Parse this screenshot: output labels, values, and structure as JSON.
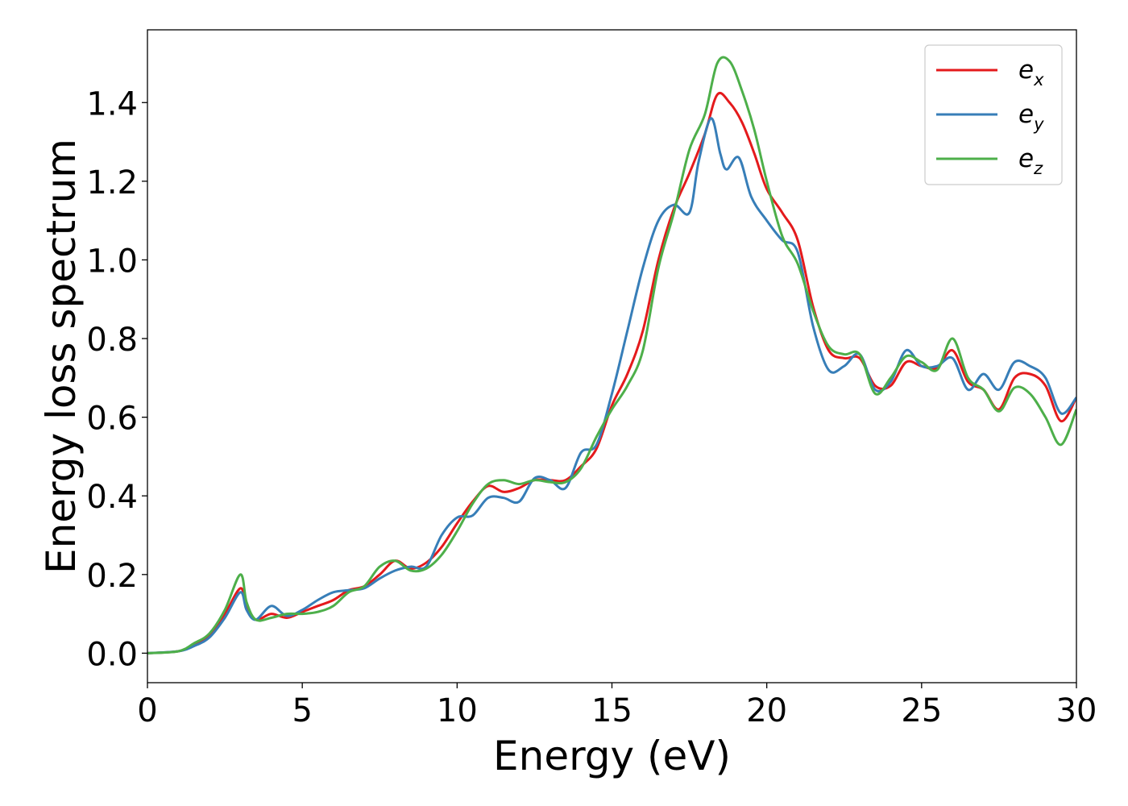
{
  "chart_data": {
    "type": "line",
    "xlabel": "Energy (eV)",
    "ylabel": "Energy loss spectrum",
    "xlim": [
      0,
      30
    ],
    "ylim": [
      -0.075,
      1.585
    ],
    "xticks": [
      0,
      5,
      10,
      15,
      20,
      25,
      30
    ],
    "yticks": [
      0.0,
      0.2,
      0.4,
      0.6,
      0.8,
      1.0,
      1.2,
      1.4
    ],
    "xtick_labels": [
      "0",
      "5",
      "10",
      "15",
      "20",
      "25",
      "30"
    ],
    "ytick_labels": [
      "0.0",
      "0.2",
      "0.4",
      "0.6",
      "0.8",
      "1.0",
      "1.2",
      "1.4"
    ],
    "grid": false,
    "legend_position": "top-right",
    "series": [
      {
        "name": "e_x",
        "label_main": "e",
        "label_sub": "x",
        "color": "#e41a1c",
        "points": [
          [
            0,
            0
          ],
          [
            1,
            0.005
          ],
          [
            1.5,
            0.02
          ],
          [
            2,
            0.045
          ],
          [
            2.5,
            0.1
          ],
          [
            3,
            0.165
          ],
          [
            3.2,
            0.12
          ],
          [
            3.5,
            0.085
          ],
          [
            4,
            0.1
          ],
          [
            4.5,
            0.09
          ],
          [
            5,
            0.105
          ],
          [
            5.5,
            0.12
          ],
          [
            6,
            0.135
          ],
          [
            6.5,
            0.16
          ],
          [
            7,
            0.17
          ],
          [
            7.5,
            0.2
          ],
          [
            8,
            0.235
          ],
          [
            8.5,
            0.215
          ],
          [
            9,
            0.23
          ],
          [
            9.5,
            0.27
          ],
          [
            10,
            0.33
          ],
          [
            10.5,
            0.385
          ],
          [
            11,
            0.425
          ],
          [
            11.5,
            0.41
          ],
          [
            12,
            0.42
          ],
          [
            12.5,
            0.44
          ],
          [
            13,
            0.44
          ],
          [
            13.5,
            0.44
          ],
          [
            14,
            0.475
          ],
          [
            14.5,
            0.52
          ],
          [
            15,
            0.63
          ],
          [
            15.5,
            0.71
          ],
          [
            16,
            0.82
          ],
          [
            16.5,
            1.0
          ],
          [
            17,
            1.13
          ],
          [
            17.5,
            1.22
          ],
          [
            18,
            1.32
          ],
          [
            18.4,
            1.42
          ],
          [
            18.8,
            1.4
          ],
          [
            19.2,
            1.35
          ],
          [
            19.6,
            1.27
          ],
          [
            20,
            1.18
          ],
          [
            20.5,
            1.12
          ],
          [
            21,
            1.05
          ],
          [
            21.5,
            0.88
          ],
          [
            22,
            0.77
          ],
          [
            22.5,
            0.75
          ],
          [
            23,
            0.75
          ],
          [
            23.5,
            0.68
          ],
          [
            24,
            0.68
          ],
          [
            24.5,
            0.74
          ],
          [
            25,
            0.73
          ],
          [
            25.5,
            0.725
          ],
          [
            26,
            0.77
          ],
          [
            26.5,
            0.69
          ],
          [
            27,
            0.67
          ],
          [
            27.5,
            0.62
          ],
          [
            28,
            0.7
          ],
          [
            28.5,
            0.71
          ],
          [
            29,
            0.68
          ],
          [
            29.5,
            0.59
          ],
          [
            30,
            0.65
          ]
        ]
      },
      {
        "name": "e_y",
        "label_main": "e",
        "label_sub": "y",
        "color": "#377eb8",
        "points": [
          [
            0,
            0
          ],
          [
            1,
            0.005
          ],
          [
            1.5,
            0.018
          ],
          [
            2,
            0.04
          ],
          [
            2.5,
            0.09
          ],
          [
            3,
            0.155
          ],
          [
            3.2,
            0.11
          ],
          [
            3.5,
            0.085
          ],
          [
            4,
            0.12
          ],
          [
            4.5,
            0.095
          ],
          [
            5,
            0.11
          ],
          [
            5.5,
            0.135
          ],
          [
            6,
            0.155
          ],
          [
            6.5,
            0.16
          ],
          [
            7,
            0.165
          ],
          [
            7.5,
            0.19
          ],
          [
            8,
            0.21
          ],
          [
            8.5,
            0.22
          ],
          [
            9,
            0.22
          ],
          [
            9.5,
            0.3
          ],
          [
            10,
            0.345
          ],
          [
            10.5,
            0.35
          ],
          [
            11,
            0.395
          ],
          [
            11.5,
            0.395
          ],
          [
            12,
            0.385
          ],
          [
            12.5,
            0.445
          ],
          [
            13,
            0.44
          ],
          [
            13.5,
            0.42
          ],
          [
            14,
            0.51
          ],
          [
            14.5,
            0.53
          ],
          [
            15,
            0.66
          ],
          [
            15.5,
            0.82
          ],
          [
            16,
            0.98
          ],
          [
            16.5,
            1.1
          ],
          [
            17,
            1.14
          ],
          [
            17.5,
            1.12
          ],
          [
            17.8,
            1.25
          ],
          [
            18.2,
            1.36
          ],
          [
            18.5,
            1.27
          ],
          [
            18.7,
            1.23
          ],
          [
            19.1,
            1.26
          ],
          [
            19.5,
            1.16
          ],
          [
            20,
            1.1
          ],
          [
            20.5,
            1.05
          ],
          [
            21,
            1.02
          ],
          [
            21.5,
            0.83
          ],
          [
            22,
            0.72
          ],
          [
            22.5,
            0.73
          ],
          [
            23,
            0.76
          ],
          [
            23.5,
            0.67
          ],
          [
            24,
            0.69
          ],
          [
            24.5,
            0.77
          ],
          [
            25,
            0.73
          ],
          [
            25.5,
            0.73
          ],
          [
            26,
            0.75
          ],
          [
            26.5,
            0.67
          ],
          [
            27,
            0.71
          ],
          [
            27.5,
            0.67
          ],
          [
            28,
            0.74
          ],
          [
            28.5,
            0.73
          ],
          [
            29,
            0.7
          ],
          [
            29.5,
            0.61
          ],
          [
            30,
            0.65
          ]
        ]
      },
      {
        "name": "e_z",
        "label_main": "e",
        "label_sub": "z",
        "color": "#4daf4a",
        "points": [
          [
            0,
            0
          ],
          [
            1,
            0.005
          ],
          [
            1.5,
            0.025
          ],
          [
            2,
            0.05
          ],
          [
            2.5,
            0.11
          ],
          [
            3,
            0.2
          ],
          [
            3.2,
            0.13
          ],
          [
            3.5,
            0.085
          ],
          [
            4,
            0.09
          ],
          [
            4.5,
            0.1
          ],
          [
            5,
            0.1
          ],
          [
            5.5,
            0.105
          ],
          [
            6,
            0.12
          ],
          [
            6.5,
            0.155
          ],
          [
            7,
            0.17
          ],
          [
            7.5,
            0.22
          ],
          [
            8,
            0.235
          ],
          [
            8.5,
            0.21
          ],
          [
            9,
            0.215
          ],
          [
            9.5,
            0.25
          ],
          [
            10,
            0.31
          ],
          [
            10.5,
            0.38
          ],
          [
            11,
            0.43
          ],
          [
            11.5,
            0.44
          ],
          [
            12,
            0.43
          ],
          [
            12.5,
            0.44
          ],
          [
            13,
            0.435
          ],
          [
            13.5,
            0.435
          ],
          [
            14,
            0.47
          ],
          [
            14.5,
            0.55
          ],
          [
            15,
            0.62
          ],
          [
            15.5,
            0.68
          ],
          [
            16,
            0.77
          ],
          [
            16.5,
            0.98
          ],
          [
            17,
            1.12
          ],
          [
            17.5,
            1.28
          ],
          [
            18,
            1.37
          ],
          [
            18.4,
            1.5
          ],
          [
            18.8,
            1.505
          ],
          [
            19.2,
            1.43
          ],
          [
            19.6,
            1.33
          ],
          [
            20,
            1.2
          ],
          [
            20.5,
            1.06
          ],
          [
            21,
            0.99
          ],
          [
            21.5,
            0.87
          ],
          [
            22,
            0.78
          ],
          [
            22.5,
            0.76
          ],
          [
            23,
            0.76
          ],
          [
            23.5,
            0.66
          ],
          [
            24,
            0.7
          ],
          [
            24.5,
            0.755
          ],
          [
            25,
            0.74
          ],
          [
            25.5,
            0.72
          ],
          [
            26,
            0.8
          ],
          [
            26.5,
            0.7
          ],
          [
            27,
            0.67
          ],
          [
            27.5,
            0.615
          ],
          [
            28,
            0.675
          ],
          [
            28.5,
            0.66
          ],
          [
            29,
            0.6
          ],
          [
            29.5,
            0.53
          ],
          [
            30,
            0.62
          ]
        ]
      }
    ]
  }
}
